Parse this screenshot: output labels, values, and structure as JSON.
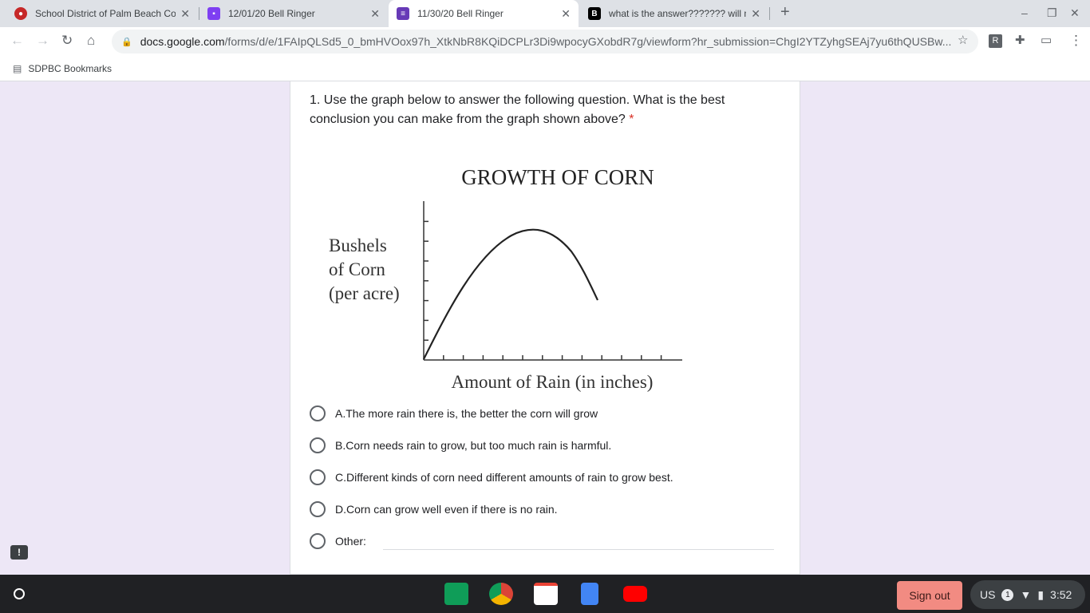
{
  "browser": {
    "tabs": [
      {
        "title": "School District of Palm Beach County",
        "color": "#c62828",
        "icon": "sdpbc-icon"
      },
      {
        "title": "12/01/20 Bell Ringer",
        "color": "#7e3ff2",
        "icon": "classroom-assignment-icon"
      },
      {
        "title": "11/30/20 Bell Ringer",
        "color": "#673ab7",
        "icon": "forms-icon",
        "active": true
      },
      {
        "title": "what is the answer??????? will mark",
        "color": "#000000",
        "icon": "brainly-icon"
      }
    ],
    "url_host": "docs.google.com",
    "url_path": "/forms/d/e/1FAIpQLSd5_0_bmHVOox97h_XtkNbR8KQiDCPLr3Di9wpocyGXobdR7g/viewform?hr_submission=ChgI2YTZyhgSEAj7yu6thQUSBw...",
    "profile_initial": "R",
    "bookmark_folder": "SDPBC Bookmarks"
  },
  "question": {
    "text": "1. Use the graph below to answer the following question. What is the best conclusion you can make from the graph shown above?",
    "required_mark": "*",
    "graph": {
      "title": "GROWTH OF CORN",
      "ylabel_lines": [
        "Bushels",
        "of Corn",
        "(per acre)"
      ],
      "xlabel": "Amount of Rain (in inches)"
    },
    "options": [
      "A.The more rain there is, the better the corn will grow",
      "B.Corn needs rain to grow, but too much rain is harmful.",
      "C.Different kinds of corn need different amounts of rain to grow best.",
      "D.Corn can grow well even if there is no rain."
    ],
    "other_label": "Other:"
  },
  "shelf": {
    "sign_out": "Sign out",
    "ime": "US",
    "notifications": "1",
    "time": "3:52"
  }
}
